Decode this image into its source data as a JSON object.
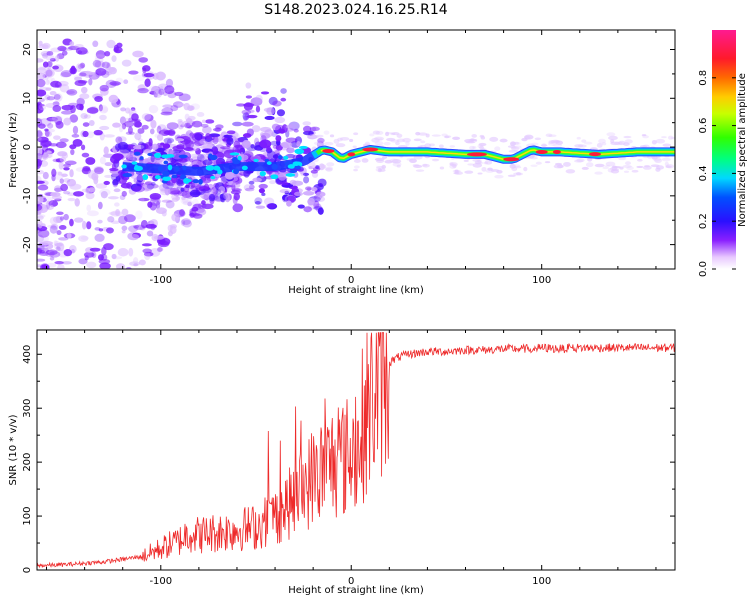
{
  "title": "S148.2023.024.16.25.R14",
  "colors": {
    "snr_line": "#ee2a2a",
    "scatter": "#7a1cff",
    "ridge_core": "#ff1a3a",
    "ridge_mid": "#33ff33",
    "ridge_edge": "#1b34ff"
  },
  "colorbar": {
    "label": "Normalized spectral amplitude",
    "ticks": [
      "0.0",
      "0.2",
      "0.4",
      "0.6",
      "0.8"
    ],
    "tick_values": [
      0.0,
      0.2,
      0.4,
      0.6,
      0.8
    ],
    "range": [
      0,
      1
    ]
  },
  "chart_data": [
    {
      "type": "heatmap",
      "title": "S148.2023.024.16.25.R14",
      "xlabel": "Height of straight line (km)",
      "ylabel": "Frequency (Hz)",
      "xlim": [
        -165,
        170
      ],
      "ylim": [
        -25,
        24
      ],
      "xticks": [
        -100,
        0,
        100
      ],
      "xtick_labels": [
        "-100",
        "0",
        "100"
      ],
      "yticks": [
        20,
        10,
        0,
        -10,
        -20
      ],
      "ytick_labels": [
        "20",
        "10",
        "0",
        "-10",
        "-20"
      ],
      "ridge": {
        "x": [
          -120,
          -100,
          -80,
          -60,
          -40,
          -25,
          -15,
          -10,
          -5,
          0,
          5,
          10,
          20,
          40,
          60,
          70,
          80,
          85,
          90,
          95,
          100,
          110,
          130,
          150,
          170
        ],
        "y": [
          -4,
          -4.5,
          -5,
          -4,
          -4,
          -3,
          -0.5,
          -1,
          -2.5,
          -1.5,
          -1,
          -0.5,
          -1,
          -1,
          -1.5,
          -1.5,
          -2.5,
          -2.5,
          -1.5,
          -0.5,
          -1,
          -1,
          -1.5,
          -1,
          -1
        ]
      }
    },
    {
      "type": "line",
      "xlabel": "Height of straight line (km)",
      "ylabel": "SNR (10 * v/v)",
      "xlim": [
        -165,
        170
      ],
      "ylim": [
        0,
        445
      ],
      "xticks": [
        -100,
        0,
        100
      ],
      "xtick_labels": [
        "-100",
        "0",
        "100"
      ],
      "yticks": [
        0,
        100,
        200,
        300,
        400
      ],
      "ytick_labels": [
        "0",
        "100",
        "200",
        "300",
        "400"
      ],
      "series": [
        {
          "x": [
            -165,
            -150,
            -130,
            -120,
            -110,
            -100,
            -90,
            -85,
            -80,
            -70,
            -60,
            -50,
            -45,
            -40,
            -30,
            -25,
            -20,
            -15,
            -10,
            -5,
            0,
            5,
            10,
            15,
            20,
            25,
            30,
            40,
            50,
            60,
            70,
            80,
            90,
            100,
            110,
            120,
            140,
            160,
            170
          ],
          "y": [
            8,
            10,
            15,
            20,
            25,
            40,
            55,
            70,
            65,
            70,
            75,
            80,
            90,
            100,
            130,
            150,
            175,
            185,
            200,
            205,
            215,
            260,
            310,
            360,
            385,
            395,
            400,
            405,
            405,
            408,
            408,
            410,
            410,
            412,
            410,
            412,
            412,
            412,
            412
          ]
        }
      ]
    }
  ]
}
